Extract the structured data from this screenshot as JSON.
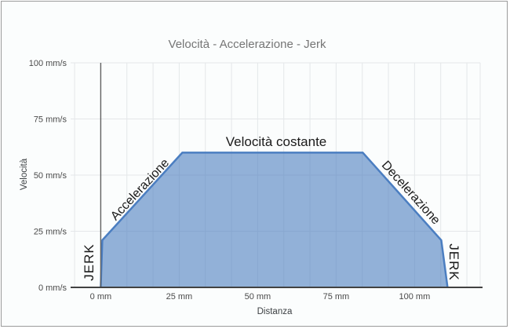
{
  "chart": {
    "title": "Velocità - Accelerazione - Jerk",
    "x_axis_title": "Distanza",
    "y_axis_title": "Velocità",
    "x_ticks": [
      "0 mm",
      "25 mm",
      "50 mm",
      "75 mm",
      "100 mm"
    ],
    "y_ticks": [
      "0 mm/s",
      "25 mm/s",
      "50 mm/s",
      "75 mm/s",
      "100 mm/s"
    ]
  },
  "annotations": {
    "acceleration": "Accelerazione",
    "constant": "Velocità costante",
    "deceleration": "Decelerazione",
    "jerk_start": "JERK",
    "jerk_end": "JERK"
  },
  "colors": {
    "background": "#fbfdfd",
    "border": "#9b9b9b",
    "title_text": "#757575",
    "tick_text": "#4a4a4a",
    "axis_title_text": "#3c4043",
    "annotation_text": "#1a1a1a",
    "grid_light": "#e4e7e9",
    "axis_dark": "#424242",
    "zero_line": "#616161",
    "series_fill": "rgba(70,122,190,0.58)",
    "series_stroke": "#4b7ec1"
  },
  "chart_data": {
    "type": "area",
    "title": "Velocità - Accelerazione - Jerk",
    "xlabel": "Distanza",
    "ylabel": "Velocità",
    "x_unit": "mm",
    "y_unit": "mm/s",
    "xlim": [
      -9.6,
      120.9
    ],
    "ylim": [
      0,
      100
    ],
    "x_tick_values": [
      0,
      25,
      50,
      75,
      100
    ],
    "y_tick_values": [
      0,
      25,
      50,
      75,
      100
    ],
    "x_minor_grid_step": 8.333,
    "grid": true,
    "legend": "none",
    "series": [
      {
        "name": "Velocità",
        "points": [
          [
            0,
            0
          ],
          [
            0.5,
            21
          ],
          [
            26,
            60
          ],
          [
            83.5,
            60
          ],
          [
            108.5,
            21
          ],
          [
            110.5,
            0
          ]
        ]
      }
    ],
    "segments": [
      {
        "label": "JERK",
        "x_start": 0,
        "x_end": 0.5
      },
      {
        "label": "Accelerazione",
        "x_start": 0.5,
        "x_end": 26
      },
      {
        "label": "Velocità costante",
        "x_start": 26,
        "x_end": 83.5
      },
      {
        "label": "Decelerazione",
        "x_start": 83.5,
        "x_end": 108.5
      },
      {
        "label": "JERK",
        "x_start": 108.5,
        "x_end": 110.5
      }
    ]
  }
}
